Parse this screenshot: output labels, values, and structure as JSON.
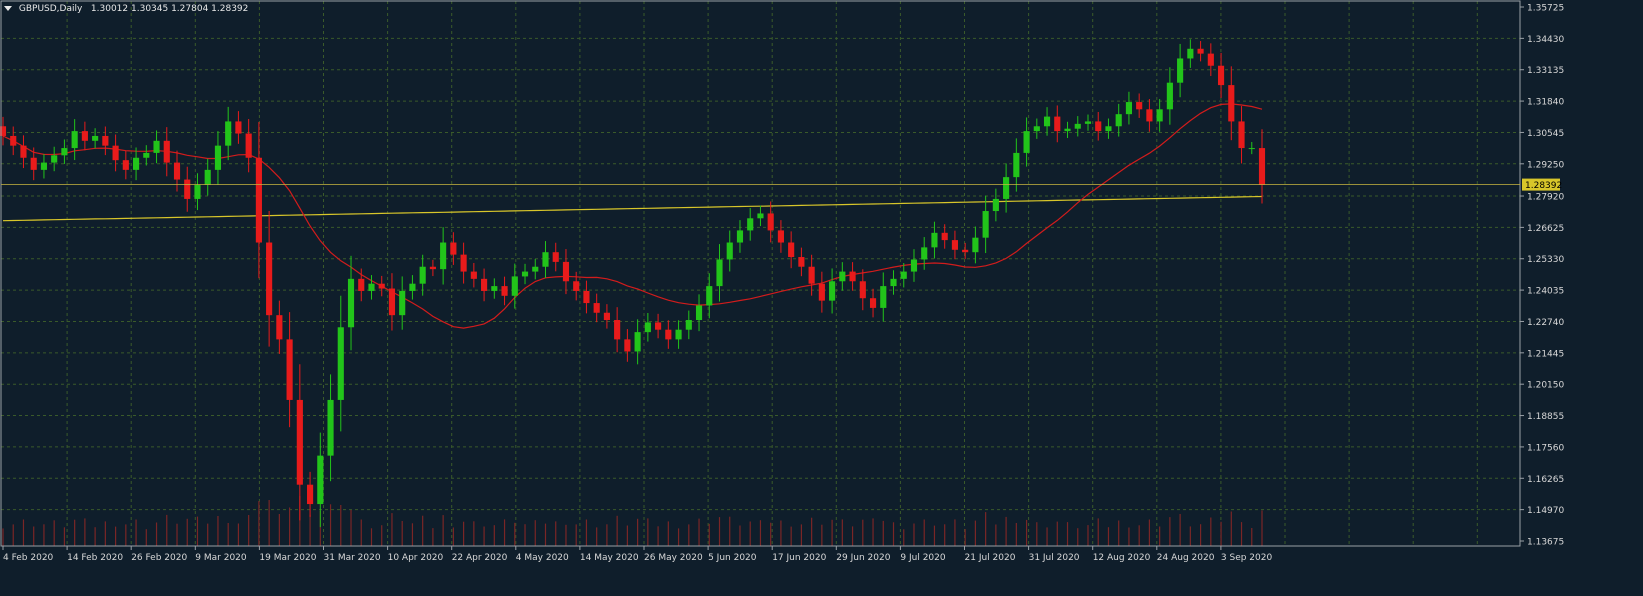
{
  "header": {
    "symbol": "GBPUSD,Daily",
    "ohlc": "1.30012 1.30345 1.27804 1.28392"
  },
  "colors": {
    "background": "#0f1e2b",
    "grid": "#3a5a2a",
    "bull": "#22c41a",
    "bear": "#e81b1b",
    "ma_fast": "#d21c1c",
    "ma_slow": "#d8c62a",
    "axis_text": "#d8d8d8",
    "price_tag_bg": "#d8c62a"
  },
  "chart_data": {
    "type": "candlestick",
    "price_axis_labels": [
      "1.35725",
      "1.34430",
      "1.33135",
      "1.31840",
      "1.30545",
      "1.29250",
      "1.27920",
      "1.26625",
      "1.25330",
      "1.24035",
      "1.22740",
      "1.21445",
      "1.20150",
      "1.18855",
      "1.17560",
      "1.16265",
      "1.14970",
      "1.13675"
    ],
    "date_axis_labels": [
      "4 Feb 2020",
      "14 Feb 2020",
      "26 Feb 2020",
      "9 Mar 2020",
      "19 Mar 2020",
      "31 Mar 2020",
      "10 Apr 2020",
      "22 Apr 2020",
      "4 May 2020",
      "14 May 2020",
      "26 May 2020",
      "5 Jun 2020",
      "17 Jun 2020",
      "29 Jun 2020",
      "9 Jul 2020",
      "21 Jul 2020",
      "31 Jul 2020",
      "12 Aug 2020",
      "24 Aug 2020",
      "3 Sep 2020"
    ],
    "ylim": [
      1.13675,
      1.35725
    ],
    "current_price": "1.28392",
    "closes": [
      1.304,
      1.3,
      1.295,
      1.29,
      1.293,
      1.296,
      1.299,
      1.306,
      1.302,
      1.304,
      1.3,
      1.294,
      1.29,
      1.295,
      1.297,
      1.302,
      1.293,
      1.286,
      1.278,
      1.284,
      1.29,
      1.3,
      1.31,
      1.305,
      1.295,
      1.26,
      1.23,
      1.22,
      1.195,
      1.16,
      1.152,
      1.172,
      1.195,
      1.225,
      1.245,
      1.24,
      1.243,
      1.241,
      1.23,
      1.24,
      1.243,
      1.25,
      1.249,
      1.26,
      1.255,
      1.248,
      1.245,
      1.24,
      1.242,
      1.238,
      1.246,
      1.248,
      1.25,
      1.256,
      1.252,
      1.244,
      1.24,
      1.235,
      1.231,
      1.228,
      1.22,
      1.215,
      1.223,
      1.227,
      1.224,
      1.22,
      1.224,
      1.228,
      1.234,
      1.242,
      1.253,
      1.26,
      1.265,
      1.27,
      1.272,
      1.265,
      1.26,
      1.254,
      1.25,
      1.243,
      1.236,
      1.244,
      1.248,
      1.244,
      1.237,
      1.233,
      1.242,
      1.245,
      1.248,
      1.253,
      1.258,
      1.264,
      1.261,
      1.257,
      1.256,
      1.262,
      1.273,
      1.278,
      1.287,
      1.297,
      1.306,
      1.308,
      1.312,
      1.306,
      1.307,
      1.309,
      1.31,
      1.306,
      1.308,
      1.313,
      1.318,
      1.315,
      1.31,
      1.315,
      1.326,
      1.336,
      1.34,
      1.338,
      1.333,
      1.325,
      1.31,
      1.299,
      1.299,
      1.2839
    ]
  }
}
